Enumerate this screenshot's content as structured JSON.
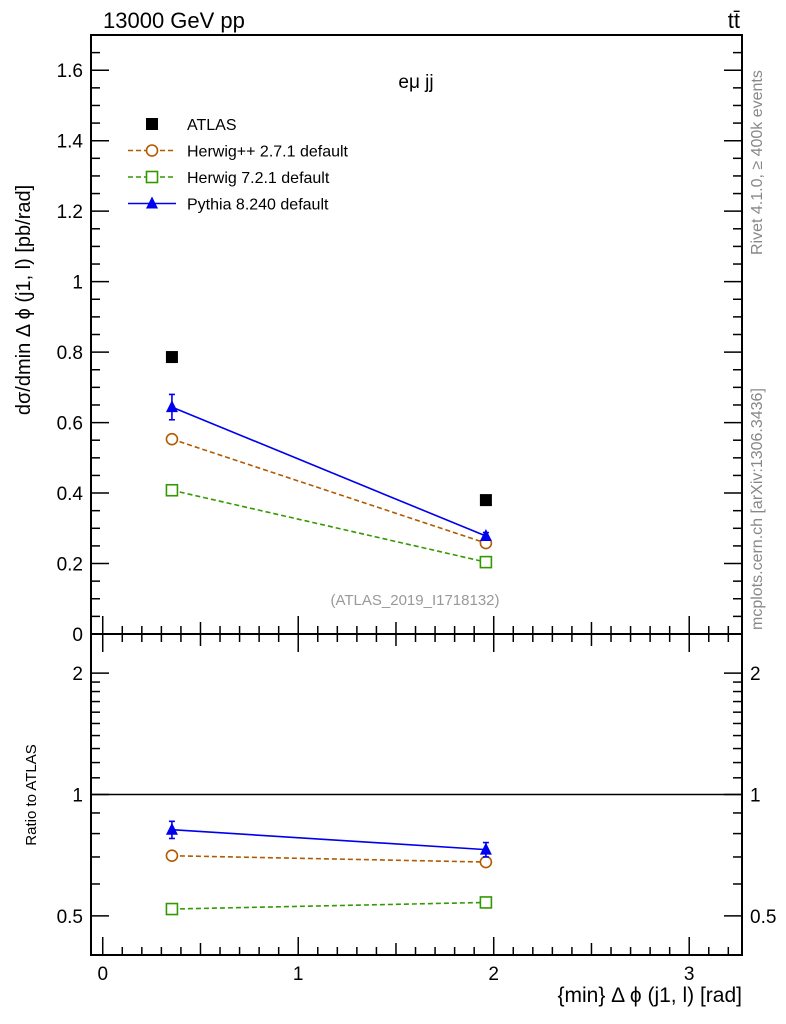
{
  "header": {
    "left": "13000 GeV pp",
    "right": "tt̄"
  },
  "side_labels": {
    "top": "Rivet 4.1.0, ≥ 400k events",
    "bottom": "mcplots.cern.ch [arXiv:1306.3436]"
  },
  "chart_data": [
    {
      "type": "line",
      "title": "eμ jj",
      "annotation": "(ATLAS_2019_I1718132)",
      "xlabel": "{min} Δ ϕ (j1, l) [rad]",
      "ylabel": "dσ/dmin Δ ϕ (j1, l) [pb/rad]",
      "xlim": [
        -0.06,
        3.27
      ],
      "ylim": [
        0,
        1.7
      ],
      "yticks": [
        0,
        0.2,
        0.4,
        0.6,
        0.8,
        1,
        1.2,
        1.4,
        1.6
      ],
      "ytick_labels": [
        "0",
        "0.2",
        "0.4",
        "0.6",
        "0.8",
        "1",
        "1.2",
        "1.4",
        "1.6"
      ],
      "legend": "top-left",
      "x": [
        0.354,
        1.96
      ],
      "series": [
        {
          "name": "ATLAS",
          "values": [
            0.786,
            0.38
          ],
          "errors": [
            0,
            0
          ],
          "color": "#000000",
          "marker": "filled-square",
          "line": "none"
        },
        {
          "name": "Herwig++ 2.7.1 default",
          "values": [
            0.553,
            0.258
          ],
          "errors": [
            0,
            0
          ],
          "color": "#b35900",
          "marker": "open-circle",
          "line": "dashed"
        },
        {
          "name": "Herwig 7.2.1 default",
          "values": [
            0.408,
            0.204
          ],
          "errors": [
            0,
            0
          ],
          "color": "#339900",
          "marker": "open-square",
          "line": "dashed"
        },
        {
          "name": "Pythia 8.240 default",
          "values": [
            0.644,
            0.278
          ],
          "errors": [
            0.036,
            0.01
          ],
          "color": "#0000ee",
          "marker": "filled-triangle",
          "line": "solid"
        }
      ]
    },
    {
      "type": "line",
      "ylabel": "Ratio to ATLAS",
      "yscale": "log",
      "ylim": [
        0.4,
        2.5
      ],
      "yticks": [
        0.5,
        1,
        2
      ],
      "ytick_labels": [
        "0.5",
        "1",
        "2"
      ],
      "xticks": [
        0,
        1,
        2,
        3
      ],
      "xtick_labels": [
        "0",
        "1",
        "2",
        "3"
      ],
      "x": [
        0.354,
        1.96
      ],
      "series": [
        {
          "name": "Herwig++ 2.7.1 default",
          "values": [
            0.705,
            0.68
          ],
          "errors": [
            0,
            0
          ]
        },
        {
          "name": "Herwig 7.2.1 default",
          "values": [
            0.52,
            0.54
          ],
          "errors": [
            0,
            0
          ]
        },
        {
          "name": "Pythia 8.240 default",
          "values": [
            0.818,
            0.73
          ],
          "errors": [
            0.04,
            0.03
          ]
        }
      ]
    }
  ]
}
